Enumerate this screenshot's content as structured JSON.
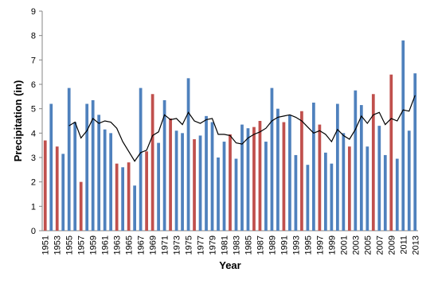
{
  "chart_data": {
    "type": "bar",
    "x_label": "Year",
    "y_label": "Precipitation (in)",
    "categories": [
      "1951",
      null,
      "1953",
      null,
      "1955",
      null,
      "1957",
      null,
      "1959",
      null,
      "1961",
      null,
      "1963",
      null,
      "1965",
      null,
      "1967",
      null,
      "1969",
      null,
      "1971",
      null,
      "1973",
      null,
      "1975",
      null,
      "1977",
      null,
      "1979",
      null,
      "1981",
      null,
      "1983",
      null,
      "1985",
      null,
      "1987",
      null,
      "1989",
      null,
      "1991",
      null,
      "1993",
      null,
      "1995",
      null,
      "1997",
      null,
      "1999",
      null,
      "2001",
      null,
      "2003",
      null,
      "2005",
      null,
      "2007",
      null,
      "2009",
      null,
      "2011",
      null,
      "2013"
    ],
    "values": [
      3.7,
      5.2,
      3.45,
      3.15,
      5.85,
      4.45,
      2.0,
      5.2,
      5.35,
      4.75,
      4.15,
      4.0,
      2.75,
      2.6,
      2.8,
      1.85,
      5.85,
      3.25,
      5.6,
      3.6,
      5.35,
      4.6,
      4.1,
      4.0,
      6.25,
      3.75,
      3.9,
      4.7,
      4.45,
      3.0,
      3.65,
      3.95,
      2.95,
      4.35,
      4.2,
      4.25,
      4.5,
      3.65,
      5.85,
      5.0,
      4.45,
      4.75,
      3.1,
      4.9,
      2.7,
      5.25,
      4.35,
      3.2,
      2.75,
      5.2,
      4.0,
      3.45,
      5.75,
      5.15,
      3.45,
      5.6,
      4.3,
      3.1,
      6.4,
      2.95,
      7.8,
      4.1,
      6.45
    ],
    "colors": [
      "#c0504d",
      "#4f81bd",
      "#c0504d",
      "#4f81bd",
      "#4f81bd",
      "#4f81bd",
      "#c0504d",
      "#4f81bd",
      "#4f81bd",
      "#4f81bd",
      "#4f81bd",
      "#4f81bd",
      "#c0504d",
      "#4f81bd",
      "#c0504d",
      "#4f81bd",
      "#4f81bd",
      "#c0504d",
      "#c0504d",
      "#4f81bd",
      "#4f81bd",
      "#c0504d",
      "#4f81bd",
      "#4f81bd",
      "#4f81bd",
      "#c0504d",
      "#4f81bd",
      "#4f81bd",
      "#4f81bd",
      "#4f81bd",
      "#4f81bd",
      "#c0504d",
      "#4f81bd",
      "#4f81bd",
      "#4f81bd",
      "#c0504d",
      "#c0504d",
      "#4f81bd",
      "#4f81bd",
      "#4f81bd",
      "#c0504d",
      "#4f81bd",
      "#4f81bd",
      "#c0504d",
      "#4f81bd",
      "#4f81bd",
      "#c0504d",
      "#4f81bd",
      "#4f81bd",
      "#4f81bd",
      "#4f81bd",
      "#c0504d",
      "#4f81bd",
      "#4f81bd",
      "#4f81bd",
      "#c0504d",
      "#4f81bd",
      "#4f81bd",
      "#c0504d",
      "#4f81bd",
      "#4f81bd",
      "#4f81bd",
      "#4f81bd"
    ],
    "line": {
      "color": "#000000",
      "values": [
        null,
        null,
        null,
        null,
        4.3,
        4.45,
        3.8,
        4.1,
        4.6,
        4.4,
        4.5,
        4.45,
        4.2,
        3.65,
        3.25,
        2.85,
        3.2,
        3.3,
        3.9,
        4.05,
        4.75,
        4.55,
        4.6,
        4.35,
        4.85,
        4.5,
        4.4,
        4.55,
        4.6,
        3.95,
        3.95,
        3.9,
        3.6,
        3.55,
        3.8,
        3.95,
        4.05,
        4.2,
        4.5,
        4.65,
        4.7,
        4.75,
        4.65,
        4.5,
        4.25,
        4.0,
        4.1,
        3.95,
        3.65,
        4.15,
        3.9,
        3.75,
        4.15,
        4.7,
        4.4,
        4.75,
        4.85,
        4.35,
        4.6,
        4.5,
        4.95,
        4.9,
        5.55
      ]
    },
    "ylim": [
      0,
      9
    ],
    "yticks": [
      0,
      1,
      2,
      3,
      4,
      5,
      6,
      7,
      8,
      9
    ],
    "grid": false
  }
}
